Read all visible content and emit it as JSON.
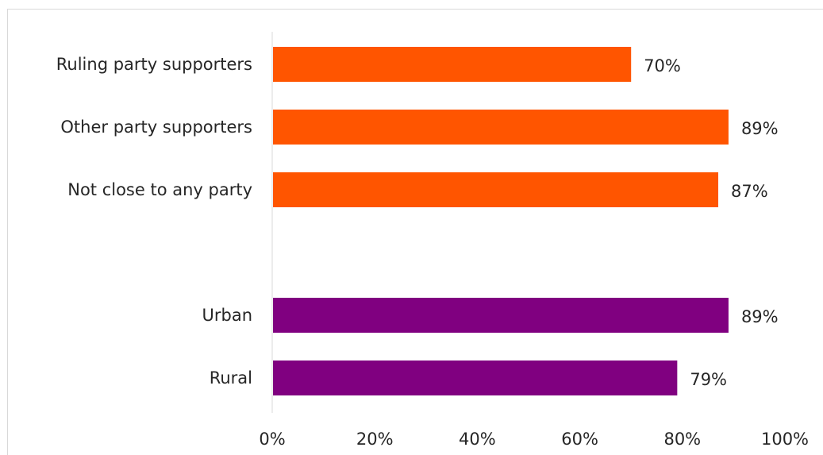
{
  "chart_data": {
    "type": "bar",
    "orientation": "horizontal",
    "categories": [
      "Ruling party supporters",
      "Other party supporters",
      "Not close to any party",
      "",
      "Urban",
      "Rural"
    ],
    "values": [
      70,
      89,
      87,
      null,
      89,
      79
    ],
    "value_labels": [
      "70%",
      "89%",
      "87%",
      "",
      "89%",
      "79%"
    ],
    "groups": [
      {
        "color": "#ff5500",
        "categories": [
          "Ruling party supporters",
          "Other party supporters",
          "Not close to any party"
        ]
      },
      {
        "color": "#800080",
        "categories": [
          "Urban",
          "Rural"
        ]
      }
    ],
    "xlim": [
      0,
      100
    ],
    "x_ticks": [
      "0%",
      "20%",
      "40%",
      "60%",
      "80%",
      "100%"
    ],
    "grid": false,
    "title": "",
    "xlabel": "",
    "ylabel": ""
  }
}
